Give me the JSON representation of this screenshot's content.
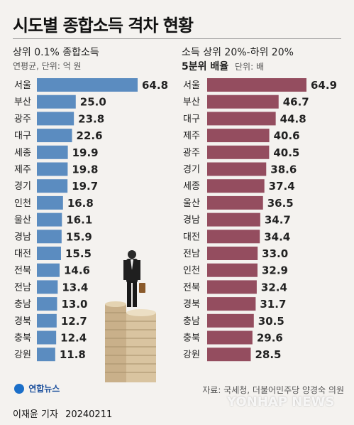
{
  "header": {
    "title": "시도별 종합소득 격차 현황"
  },
  "colors": {
    "left_bar": "#5b8cc0",
    "right_bar": "#944d5f",
    "background": "#f4f2ef"
  },
  "left_panel": {
    "heading": "상위 0.1% 종합소득",
    "sub_prefix": "연평균, 단위:",
    "sub_unit": "억 원"
  },
  "right_panel": {
    "heading": "소득 상위 20%-하위 20%",
    "heading2": "5분위 배율",
    "sub_unit": "단위: 배"
  },
  "chart_data": [
    {
      "type": "bar",
      "orientation": "horizontal",
      "title": "상위 0.1% 종합소득",
      "subtitle": "연평균, 단위: 억 원",
      "categories": [
        "서울",
        "부산",
        "광주",
        "대구",
        "세종",
        "제주",
        "경기",
        "인천",
        "울산",
        "경남",
        "대전",
        "전북",
        "전남",
        "충남",
        "경북",
        "충북",
        "강원"
      ],
      "values": [
        64.8,
        25.0,
        23.8,
        22.6,
        19.9,
        19.8,
        19.7,
        16.8,
        16.1,
        15.9,
        15.5,
        14.6,
        13.4,
        13.0,
        12.7,
        12.4,
        11.8
      ],
      "value_labels": [
        "64.8",
        "25.0",
        "23.8",
        "22.6",
        "19.9",
        "19.8",
        "19.7",
        "16.8",
        "16.1",
        "15.9",
        "15.5",
        "14.6",
        "13.4",
        "13.0",
        "12.7",
        "12.4",
        "11.8"
      ],
      "xlim": [
        0,
        70
      ],
      "color": "#5b8cc0"
    },
    {
      "type": "bar",
      "orientation": "horizontal",
      "title": "소득 상위 20%-하위 20% 5분위 배율",
      "subtitle": "단위: 배",
      "categories": [
        "서울",
        "부산",
        "대구",
        "제주",
        "광주",
        "경기",
        "세종",
        "울산",
        "경남",
        "대전",
        "전남",
        "인천",
        "전북",
        "경북",
        "충남",
        "충북",
        "강원"
      ],
      "values": [
        64.9,
        46.7,
        44.8,
        40.6,
        40.5,
        38.6,
        37.4,
        36.5,
        34.7,
        34.4,
        33.0,
        32.9,
        32.4,
        31.7,
        30.5,
        29.6,
        28.5
      ],
      "value_labels": [
        "64.9",
        "46.7",
        "44.8",
        "40.6",
        "40.5",
        "38.6",
        "37.4",
        "36.5",
        "34.7",
        "34.4",
        "33.0",
        "32.9",
        "32.4",
        "31.7",
        "30.5",
        "29.6",
        "28.5"
      ],
      "xlim": [
        0,
        70
      ],
      "color": "#944d5f"
    }
  ],
  "footer": {
    "source": "자료: 국세청, 더불어민주당 양경숙 의원",
    "logo_text": "연합뉴스",
    "author": "이재윤 기자",
    "date": "20240211",
    "watermark": "YONHAP NEWS"
  }
}
